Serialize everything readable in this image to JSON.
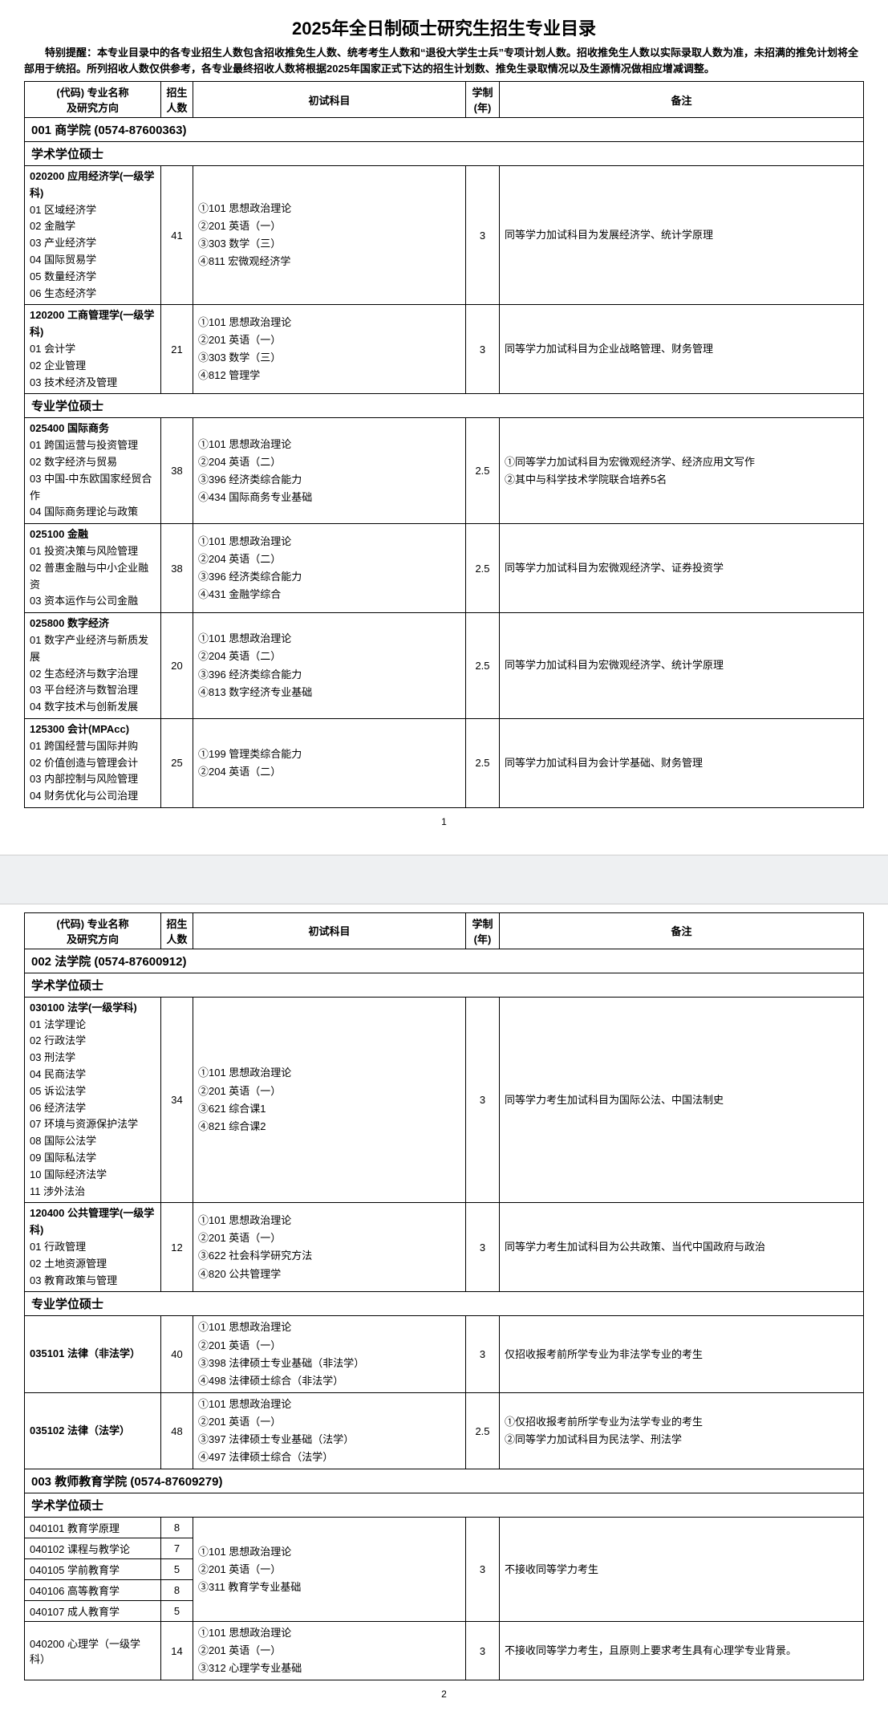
{
  "title": "2025年全日制硕士研究生招生专业目录",
  "notice": "特别提醒：本专业目录中的各专业招生人数包含招收推免生人数、统考考生人数和“退役大学生士兵”专项计划人数。招收推免生人数以实际录取人数为准，未招满的推免计划将全部用于统招。所列招收人数仅供参考，各专业最终招收人数将根据2025年国家正式下达的招生计划数、推免生录取情况以及生源情况做相应增减调整。",
  "columns": {
    "code_name": "(代码) 专业名称\n及研究方向",
    "quota": "招生\n人数",
    "subjects": "初试科目",
    "years": "学制\n(年)",
    "remark": "备注"
  },
  "page1": {
    "school": "001 商学院 (0574-87600363)",
    "sec_academic": "学术学位硕士",
    "rows_academic": [
      {
        "major": "020200 应用经济学(一级学科)",
        "dirs": [
          "01 区域经济学",
          "02 金融学",
          "03 产业经济学",
          "04 国际贸易学",
          "05 数量经济学",
          "06 生态经济学"
        ],
        "quota": "41",
        "subjects": [
          "①101 思想政治理论",
          "②201 英语（一）",
          "③303 数学（三）",
          "④811 宏微观经济学"
        ],
        "years": "3",
        "remark": "同等学力加试科目为发展经济学、统计学原理"
      },
      {
        "major": "120200 工商管理学(一级学科)",
        "dirs": [
          "01 会计学",
          "02 企业管理",
          "03 技术经济及管理"
        ],
        "quota": "21",
        "subjects": [
          "①101 思想政治理论",
          "②201 英语（一）",
          "③303 数学（三）",
          "④812 管理学"
        ],
        "years": "3",
        "remark": "同等学力加试科目为企业战略管理、财务管理"
      }
    ],
    "sec_professional": "专业学位硕士",
    "rows_professional": [
      {
        "major": "025400 国际商务",
        "dirs": [
          "01 跨国运营与投资管理",
          "02 数字经济与贸易",
          "03 中国-中东欧国家经贸合作",
          "04 国际商务理论与政策"
        ],
        "quota": "38",
        "subjects": [
          "①101 思想政治理论",
          "②204 英语（二）",
          "③396 经济类综合能力",
          "④434 国际商务专业基础"
        ],
        "years": "2.5",
        "remark": "①同等学力加试科目为宏微观经济学、经济应用文写作\n②其中与科学技术学院联合培养5名"
      },
      {
        "major": "025100 金融",
        "dirs": [
          "01 投资决策与风险管理",
          "02 普惠金融与中小企业融资",
          "03 资本运作与公司金融"
        ],
        "quota": "38",
        "subjects": [
          "①101 思想政治理论",
          "②204 英语（二）",
          "③396 经济类综合能力",
          "④431 金融学综合"
        ],
        "years": "2.5",
        "remark": "同等学力加试科目为宏微观经济学、证券投资学"
      },
      {
        "major": "025800 数字经济",
        "dirs": [
          "01 数字产业经济与新质发展",
          "02 生态经济与数字治理",
          "03 平台经济与数智治理",
          "04 数字技术与创新发展"
        ],
        "quota": "20",
        "subjects": [
          "①101 思想政治理论",
          "②204 英语（二）",
          "③396 经济类综合能力",
          "④813 数字经济专业基础"
        ],
        "years": "2.5",
        "remark": "同等学力加试科目为宏微观经济学、统计学原理"
      },
      {
        "major": "125300 会计(MPAcc)",
        "dirs": [
          "01 跨国经营与国际并购",
          "02 价值创造与管理会计",
          "03 内部控制与风险管理",
          "04 财务优化与公司治理"
        ],
        "quota": "25",
        "subjects": [
          "①199 管理类综合能力",
          "②204 英语（二）"
        ],
        "years": "2.5",
        "remark": "同等学力加试科目为会计学基础、财务管理"
      }
    ],
    "page_num": "1"
  },
  "page2": {
    "school2": "002 法学院 (0574-87600912)",
    "sec_academic": "学术学位硕士",
    "rows_academic": [
      {
        "major": "030100 法学(一级学科)",
        "dirs": [
          "01 法学理论",
          "02 行政法学",
          "03 刑法学",
          "04 民商法学",
          "05 诉讼法学",
          "06 经济法学",
          "07 环境与资源保护法学",
          "08 国际公法学",
          "09 国际私法学",
          "10 国际经济法学",
          "11 涉外法治"
        ],
        "quota": "34",
        "subjects": [
          "①101 思想政治理论",
          "②201 英语（一）",
          "③621 综合课1",
          "④821 综合课2"
        ],
        "years": "3",
        "remark": "同等学力考生加试科目为国际公法、中国法制史"
      },
      {
        "major": "120400 公共管理学(一级学科)",
        "dirs": [
          "01 行政管理",
          "02 土地资源管理",
          "03 教育政策与管理"
        ],
        "quota": "12",
        "subjects": [
          "①101 思想政治理论",
          "②201 英语（一）",
          "③622 社会科学研究方法",
          "④820 公共管理学"
        ],
        "years": "3",
        "remark": "同等学力考生加试科目为公共政策、当代中国政府与政治"
      }
    ],
    "sec_professional": "专业学位硕士",
    "rows_professional": [
      {
        "major": "035101 法律（非法学）",
        "dirs": [],
        "quota": "40",
        "subjects": [
          "①101 思想政治理论",
          "②201 英语（一）",
          "③398 法律硕士专业基础（非法学）",
          "④498 法律硕士综合（非法学）"
        ],
        "years": "3",
        "remark": "仅招收报考前所学专业为非法学专业的考生"
      },
      {
        "major": "035102 法律（法学）",
        "dirs": [],
        "quota": "48",
        "subjects": [
          "①101 思想政治理论",
          "②201 英语（一）",
          "③397 法律硕士专业基础（法学）",
          "④497 法律硕士综合（法学）"
        ],
        "years": "2.5",
        "remark": "①仅招收报考前所学专业为法学专业的考生\n②同等学力加试科目为民法学、刑法学"
      }
    ],
    "school3": "003 教师教育学院 (0574-87609279)",
    "sec_academic3": "学术学位硕士",
    "edu_group": {
      "rows": [
        {
          "major": "040101 教育学原理",
          "quota": "8"
        },
        {
          "major": "040102 课程与教学论",
          "quota": "7"
        },
        {
          "major": "040105 学前教育学",
          "quota": "5"
        },
        {
          "major": "040106 高等教育学",
          "quota": "8"
        },
        {
          "major": "040107 成人教育学",
          "quota": "5"
        }
      ],
      "subjects": [
        "①101 思想政治理论",
        "②201 英语（一）",
        "③311 教育学专业基础"
      ],
      "years": "3",
      "remark": "不接收同等学力考生"
    },
    "psych_row": {
      "major": "040200 心理学（一级学科）",
      "quota": "14",
      "subjects": [
        "①101 思想政治理论",
        "②201 英语（一）",
        "③312 心理学专业基础"
      ],
      "years": "3",
      "remark": "不接收同等学力考生，且原则上要求考生具有心理学专业背景。"
    },
    "page_num": "2"
  }
}
